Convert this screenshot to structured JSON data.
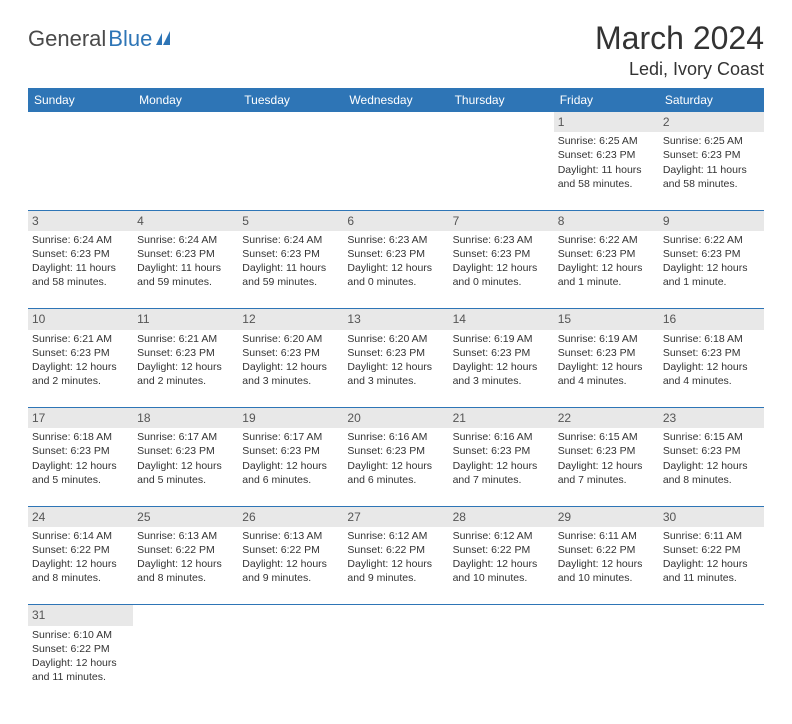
{
  "logo": {
    "part1": "General",
    "part2": "Blue"
  },
  "title": "March 2024",
  "location": "Ledi, Ivory Coast",
  "colors": {
    "header_bg": "#2e75b6",
    "header_text": "#ffffff",
    "daynum_bg": "#e8e8e8",
    "border": "#2e75b6",
    "logo_blue": "#2e75b6",
    "text": "#333333"
  },
  "weekdays": [
    "Sunday",
    "Monday",
    "Tuesday",
    "Wednesday",
    "Thursday",
    "Friday",
    "Saturday"
  ],
  "weeks": [
    [
      null,
      null,
      null,
      null,
      null,
      {
        "n": "1",
        "sr": "Sunrise: 6:25 AM",
        "ss": "Sunset: 6:23 PM",
        "dl": "Daylight: 11 hours and 58 minutes."
      },
      {
        "n": "2",
        "sr": "Sunrise: 6:25 AM",
        "ss": "Sunset: 6:23 PM",
        "dl": "Daylight: 11 hours and 58 minutes."
      }
    ],
    [
      {
        "n": "3",
        "sr": "Sunrise: 6:24 AM",
        "ss": "Sunset: 6:23 PM",
        "dl": "Daylight: 11 hours and 58 minutes."
      },
      {
        "n": "4",
        "sr": "Sunrise: 6:24 AM",
        "ss": "Sunset: 6:23 PM",
        "dl": "Daylight: 11 hours and 59 minutes."
      },
      {
        "n": "5",
        "sr": "Sunrise: 6:24 AM",
        "ss": "Sunset: 6:23 PM",
        "dl": "Daylight: 11 hours and 59 minutes."
      },
      {
        "n": "6",
        "sr": "Sunrise: 6:23 AM",
        "ss": "Sunset: 6:23 PM",
        "dl": "Daylight: 12 hours and 0 minutes."
      },
      {
        "n": "7",
        "sr": "Sunrise: 6:23 AM",
        "ss": "Sunset: 6:23 PM",
        "dl": "Daylight: 12 hours and 0 minutes."
      },
      {
        "n": "8",
        "sr": "Sunrise: 6:22 AM",
        "ss": "Sunset: 6:23 PM",
        "dl": "Daylight: 12 hours and 1 minute."
      },
      {
        "n": "9",
        "sr": "Sunrise: 6:22 AM",
        "ss": "Sunset: 6:23 PM",
        "dl": "Daylight: 12 hours and 1 minute."
      }
    ],
    [
      {
        "n": "10",
        "sr": "Sunrise: 6:21 AM",
        "ss": "Sunset: 6:23 PM",
        "dl": "Daylight: 12 hours and 2 minutes."
      },
      {
        "n": "11",
        "sr": "Sunrise: 6:21 AM",
        "ss": "Sunset: 6:23 PM",
        "dl": "Daylight: 12 hours and 2 minutes."
      },
      {
        "n": "12",
        "sr": "Sunrise: 6:20 AM",
        "ss": "Sunset: 6:23 PM",
        "dl": "Daylight: 12 hours and 3 minutes."
      },
      {
        "n": "13",
        "sr": "Sunrise: 6:20 AM",
        "ss": "Sunset: 6:23 PM",
        "dl": "Daylight: 12 hours and 3 minutes."
      },
      {
        "n": "14",
        "sr": "Sunrise: 6:19 AM",
        "ss": "Sunset: 6:23 PM",
        "dl": "Daylight: 12 hours and 3 minutes."
      },
      {
        "n": "15",
        "sr": "Sunrise: 6:19 AM",
        "ss": "Sunset: 6:23 PM",
        "dl": "Daylight: 12 hours and 4 minutes."
      },
      {
        "n": "16",
        "sr": "Sunrise: 6:18 AM",
        "ss": "Sunset: 6:23 PM",
        "dl": "Daylight: 12 hours and 4 minutes."
      }
    ],
    [
      {
        "n": "17",
        "sr": "Sunrise: 6:18 AM",
        "ss": "Sunset: 6:23 PM",
        "dl": "Daylight: 12 hours and 5 minutes."
      },
      {
        "n": "18",
        "sr": "Sunrise: 6:17 AM",
        "ss": "Sunset: 6:23 PM",
        "dl": "Daylight: 12 hours and 5 minutes."
      },
      {
        "n": "19",
        "sr": "Sunrise: 6:17 AM",
        "ss": "Sunset: 6:23 PM",
        "dl": "Daylight: 12 hours and 6 minutes."
      },
      {
        "n": "20",
        "sr": "Sunrise: 6:16 AM",
        "ss": "Sunset: 6:23 PM",
        "dl": "Daylight: 12 hours and 6 minutes."
      },
      {
        "n": "21",
        "sr": "Sunrise: 6:16 AM",
        "ss": "Sunset: 6:23 PM",
        "dl": "Daylight: 12 hours and 7 minutes."
      },
      {
        "n": "22",
        "sr": "Sunrise: 6:15 AM",
        "ss": "Sunset: 6:23 PM",
        "dl": "Daylight: 12 hours and 7 minutes."
      },
      {
        "n": "23",
        "sr": "Sunrise: 6:15 AM",
        "ss": "Sunset: 6:23 PM",
        "dl": "Daylight: 12 hours and 8 minutes."
      }
    ],
    [
      {
        "n": "24",
        "sr": "Sunrise: 6:14 AM",
        "ss": "Sunset: 6:22 PM",
        "dl": "Daylight: 12 hours and 8 minutes."
      },
      {
        "n": "25",
        "sr": "Sunrise: 6:13 AM",
        "ss": "Sunset: 6:22 PM",
        "dl": "Daylight: 12 hours and 8 minutes."
      },
      {
        "n": "26",
        "sr": "Sunrise: 6:13 AM",
        "ss": "Sunset: 6:22 PM",
        "dl": "Daylight: 12 hours and 9 minutes."
      },
      {
        "n": "27",
        "sr": "Sunrise: 6:12 AM",
        "ss": "Sunset: 6:22 PM",
        "dl": "Daylight: 12 hours and 9 minutes."
      },
      {
        "n": "28",
        "sr": "Sunrise: 6:12 AM",
        "ss": "Sunset: 6:22 PM",
        "dl": "Daylight: 12 hours and 10 minutes."
      },
      {
        "n": "29",
        "sr": "Sunrise: 6:11 AM",
        "ss": "Sunset: 6:22 PM",
        "dl": "Daylight: 12 hours and 10 minutes."
      },
      {
        "n": "30",
        "sr": "Sunrise: 6:11 AM",
        "ss": "Sunset: 6:22 PM",
        "dl": "Daylight: 12 hours and 11 minutes."
      }
    ],
    [
      {
        "n": "31",
        "sr": "Sunrise: 6:10 AM",
        "ss": "Sunset: 6:22 PM",
        "dl": "Daylight: 12 hours and 11 minutes."
      },
      null,
      null,
      null,
      null,
      null,
      null
    ]
  ]
}
